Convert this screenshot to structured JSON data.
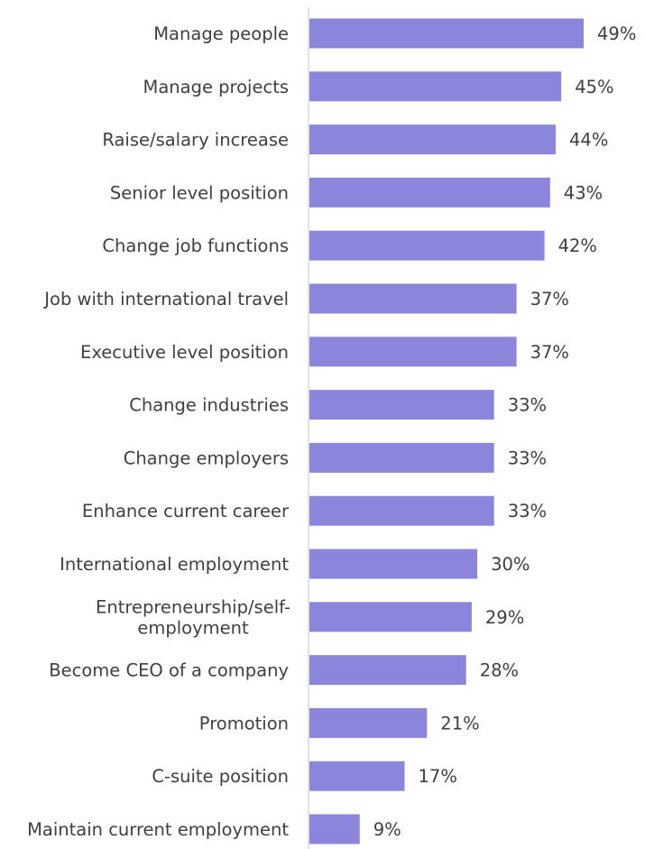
{
  "chart_data": {
    "type": "bar",
    "orientation": "horizontal",
    "categories": [
      "Manage people",
      "Manage projects",
      "Raise/salary increase",
      "Senior level position",
      "Change job functions",
      "Job with international travel",
      "Executive level position",
      "Change industries",
      "Change employers",
      "Enhance current career",
      "International employment",
      "Entrepreneurship/self-employment",
      "Become CEO of a company",
      "Promotion",
      "C-suite position",
      "Maintain current employment"
    ],
    "category_lines": [
      [
        "Manage people"
      ],
      [
        "Manage projects"
      ],
      [
        "Raise/salary increase"
      ],
      [
        "Senior level position"
      ],
      [
        "Change job functions"
      ],
      [
        "Job with international travel"
      ],
      [
        "Executive level position"
      ],
      [
        "Change industries"
      ],
      [
        "Change employers"
      ],
      [
        "Enhance current career"
      ],
      [
        "International employment"
      ],
      [
        "Entrepreneurship/self-",
        "employment"
      ],
      [
        "Become CEO of a company"
      ],
      [
        "Promotion"
      ],
      [
        "C-suite position"
      ],
      [
        "Maintain current employment"
      ]
    ],
    "values": [
      49,
      45,
      44,
      43,
      42,
      37,
      37,
      33,
      33,
      33,
      30,
      29,
      28,
      21,
      17,
      9
    ],
    "value_labels": [
      "49%",
      "45%",
      "44%",
      "43%",
      "42%",
      "37%",
      "37%",
      "33%",
      "33%",
      "33%",
      "30%",
      "29%",
      "28%",
      "21%",
      "17%",
      "9%"
    ],
    "xlim": [
      0,
      49
    ],
    "unit": "%",
    "bar_color": "#8b86dc",
    "axis_color": "#d9d9d9",
    "text_color": "#3f3f3f",
    "grid": false,
    "legend": "none",
    "title": "",
    "xlabel": "",
    "ylabel": ""
  }
}
